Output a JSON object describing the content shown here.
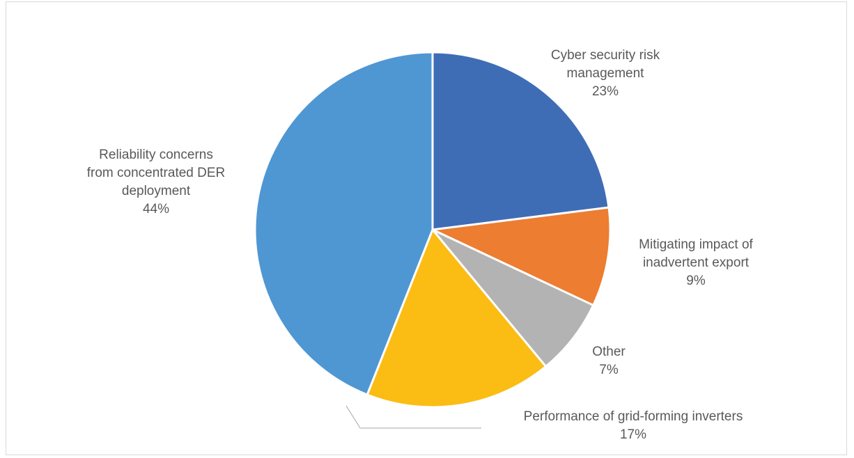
{
  "chart_data": {
    "type": "pie",
    "title": "",
    "start_angle_deg": 0,
    "direction": "clockwise",
    "legend": "none",
    "slices": [
      {
        "name": "Cyber security risk management",
        "label_lines": [
          "Cyber security risk",
          "management"
        ],
        "value": 23,
        "value_label": "23%",
        "color": "#3F6DB5"
      },
      {
        "name": "Mitigating impact of inadvertent export",
        "label_lines": [
          "Mitigating impact of",
          "inadvertent export"
        ],
        "value": 9,
        "value_label": "9%",
        "color": "#ED7D31"
      },
      {
        "name": "Other",
        "label_lines": [
          "Other"
        ],
        "value": 7,
        "value_label": "7%",
        "color": "#B3B3B3"
      },
      {
        "name": "Performance of grid-forming inverters",
        "label_lines": [
          "Performance of grid-forming inverters"
        ],
        "value": 17,
        "value_label": "17%",
        "color": "#FBBC14"
      },
      {
        "name": "Reliability concerns from concentrated DER deployment",
        "label_lines": [
          "Reliability concerns",
          "from concentrated DER",
          "deployment"
        ],
        "value": 44,
        "value_label": "44%",
        "color": "#4F97D3"
      }
    ]
  }
}
